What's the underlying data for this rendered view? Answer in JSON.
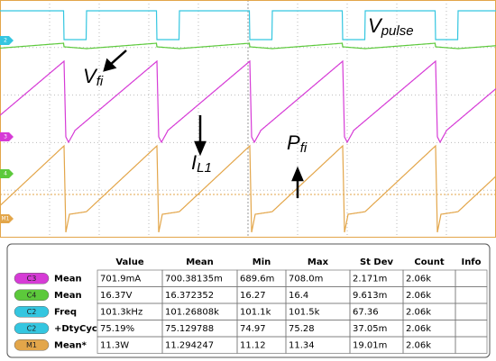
{
  "annotations": {
    "v_pulse": {
      "main": "V",
      "sub": "pulse"
    },
    "v_fi": {
      "main": "V",
      "sub": "fi"
    },
    "i_l1": {
      "main": "I",
      "sub": "L1"
    },
    "p_fi": {
      "main": "P",
      "sub": "fi"
    }
  },
  "channel_markers": [
    "2",
    "3",
    "4",
    "M1"
  ],
  "table": {
    "headers": [
      "Value",
      "Mean",
      "Min",
      "Max",
      "St Dev",
      "Count",
      "Info"
    ],
    "rows": [
      {
        "badge": "C3",
        "label": "Mean",
        "cells": [
          "701.9mA",
          "700.38135m",
          "689.6m",
          "708.0m",
          "2.171m",
          "2.06k"
        ]
      },
      {
        "badge": "C4",
        "label": "Mean",
        "cells": [
          "16.37V",
          "16.372352",
          "16.27",
          "16.4",
          "9.613m",
          "2.06k"
        ]
      },
      {
        "badge": "C2",
        "label": "Freq",
        "cells": [
          "101.3kHz",
          "101.26808k",
          "101.1k",
          "101.5k",
          "67.36",
          "2.06k"
        ]
      },
      {
        "badge": "C2",
        "label": "+DtyCyc",
        "cells": [
          "75.19%",
          "75.129788",
          "74.97",
          "75.28",
          "37.05m",
          "2.06k"
        ]
      },
      {
        "badge": "M1",
        "label": "Mean*",
        "cells": [
          "11.3W",
          "11.294247",
          "11.12",
          "11.34",
          "19.01m",
          "2.06k"
        ]
      }
    ]
  }
}
